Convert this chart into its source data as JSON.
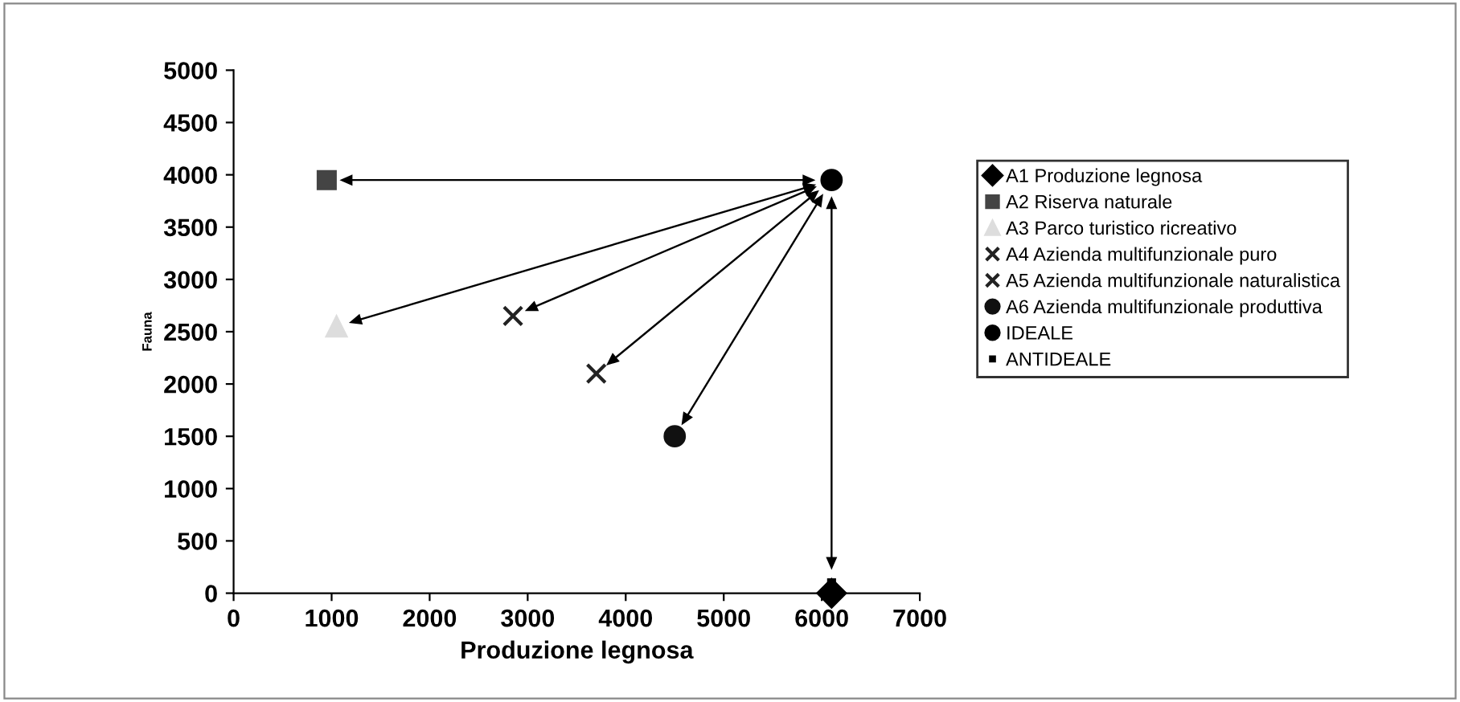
{
  "chart_data": {
    "type": "scatter",
    "xlabel": "Produzione legnosa",
    "ylabel": "Fauna",
    "xlim": [
      0,
      7000
    ],
    "xticks": [
      0,
      1000,
      2000,
      3000,
      4000,
      5000,
      6000,
      7000
    ],
    "ylim": [
      0,
      5000
    ],
    "yticks": [
      0,
      500,
      1000,
      1500,
      2000,
      2500,
      3000,
      3500,
      4000,
      4500,
      5000
    ],
    "grid": false,
    "legend": "right",
    "series": [
      {
        "name": "A1 Produzione legnosa",
        "color": "#000000",
        "marker": "diamond",
        "x": [
          6100
        ],
        "values": [
          0
        ]
      },
      {
        "name": "A2 Riserva naturale",
        "color": "#444444",
        "marker": "square",
        "x": [
          950
        ],
        "values": [
          3950
        ]
      },
      {
        "name": "A3 Parco turistico ricreativo",
        "color": "#dddddd",
        "marker": "triangle",
        "x": [
          1050
        ],
        "values": [
          2550
        ]
      },
      {
        "name": "A4 Azienda multifunzionale puro",
        "color": "#222222",
        "marker": "cross",
        "x": [
          2850
        ],
        "values": [
          2650
        ]
      },
      {
        "name": "A5 Azienda multifunzionale naturalistica",
        "color": "#222222",
        "marker": "cross",
        "x": [
          3700
        ],
        "values": [
          2100
        ]
      },
      {
        "name": "A6 Azienda multifunzionale produttiva",
        "color": "#111111",
        "marker": "circle",
        "x": [
          4500
        ],
        "values": [
          1500
        ]
      },
      {
        "name": "IDEALE",
        "color": "#000000",
        "marker": "circle",
        "x": [
          6100
        ],
        "values": [
          3950
        ]
      },
      {
        "name": "ANTIDEALE",
        "color": "#000000",
        "marker": "square",
        "x": [
          6100
        ],
        "values": [
          100
        ]
      }
    ]
  }
}
